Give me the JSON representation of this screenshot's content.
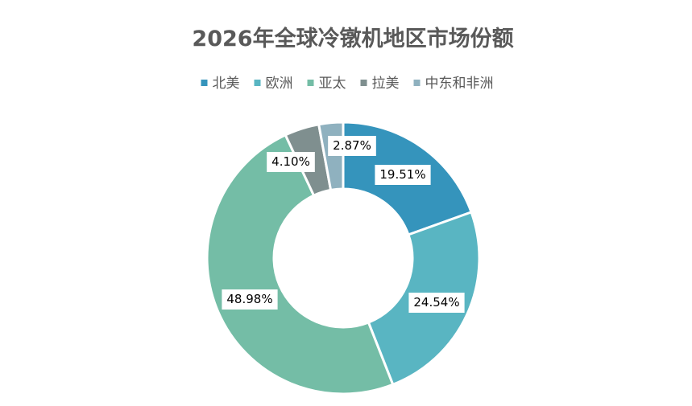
{
  "chart_data": {
    "type": "pie",
    "variant": "donut",
    "title": "2026年全球冷镦机地区市场份额",
    "categories": [
      "北美",
      "欧洲",
      "亚太",
      "拉美",
      "中东和非洲"
    ],
    "values": [
      19.51,
      24.54,
      48.98,
      4.1,
      2.87
    ],
    "data_labels": [
      "19.51%",
      "24.54%",
      "48.98%",
      "4.10%",
      "2.87%"
    ],
    "unit": "%",
    "colors": [
      "#3594BC",
      "#59B5C2",
      "#74BDA6",
      "#7F8F8F",
      "#8FB1BF"
    ],
    "legend_position": "top"
  }
}
